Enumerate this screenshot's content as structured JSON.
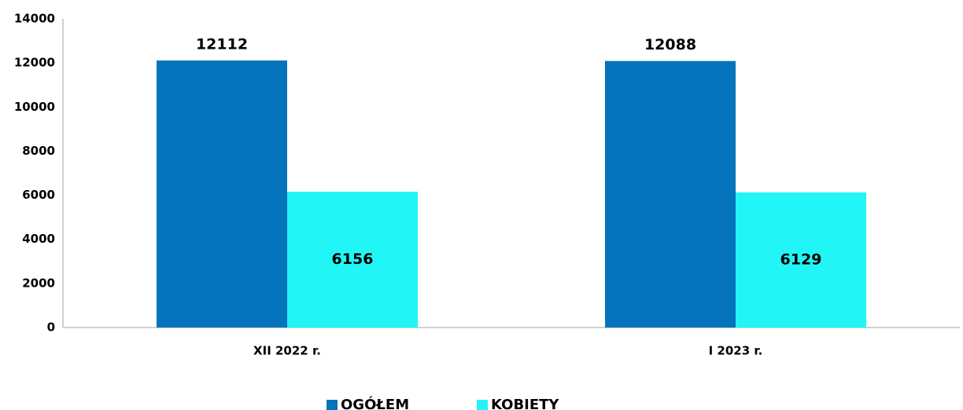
{
  "chart_data": {
    "type": "bar",
    "categories": [
      "XII 2022 r.",
      "I 2023 r."
    ],
    "series": [
      {
        "name": "OGÓŁEM",
        "color": "#0474bc",
        "values": [
          12112,
          12088
        ]
      },
      {
        "name": "KOBIETY",
        "color": "#22f5f5",
        "values": [
          6156,
          6129
        ]
      }
    ],
    "ylim": [
      0,
      14000
    ],
    "yticks": [
      0,
      2000,
      4000,
      6000,
      8000,
      10000,
      12000,
      14000
    ],
    "grid": false,
    "legend": "bottom"
  }
}
